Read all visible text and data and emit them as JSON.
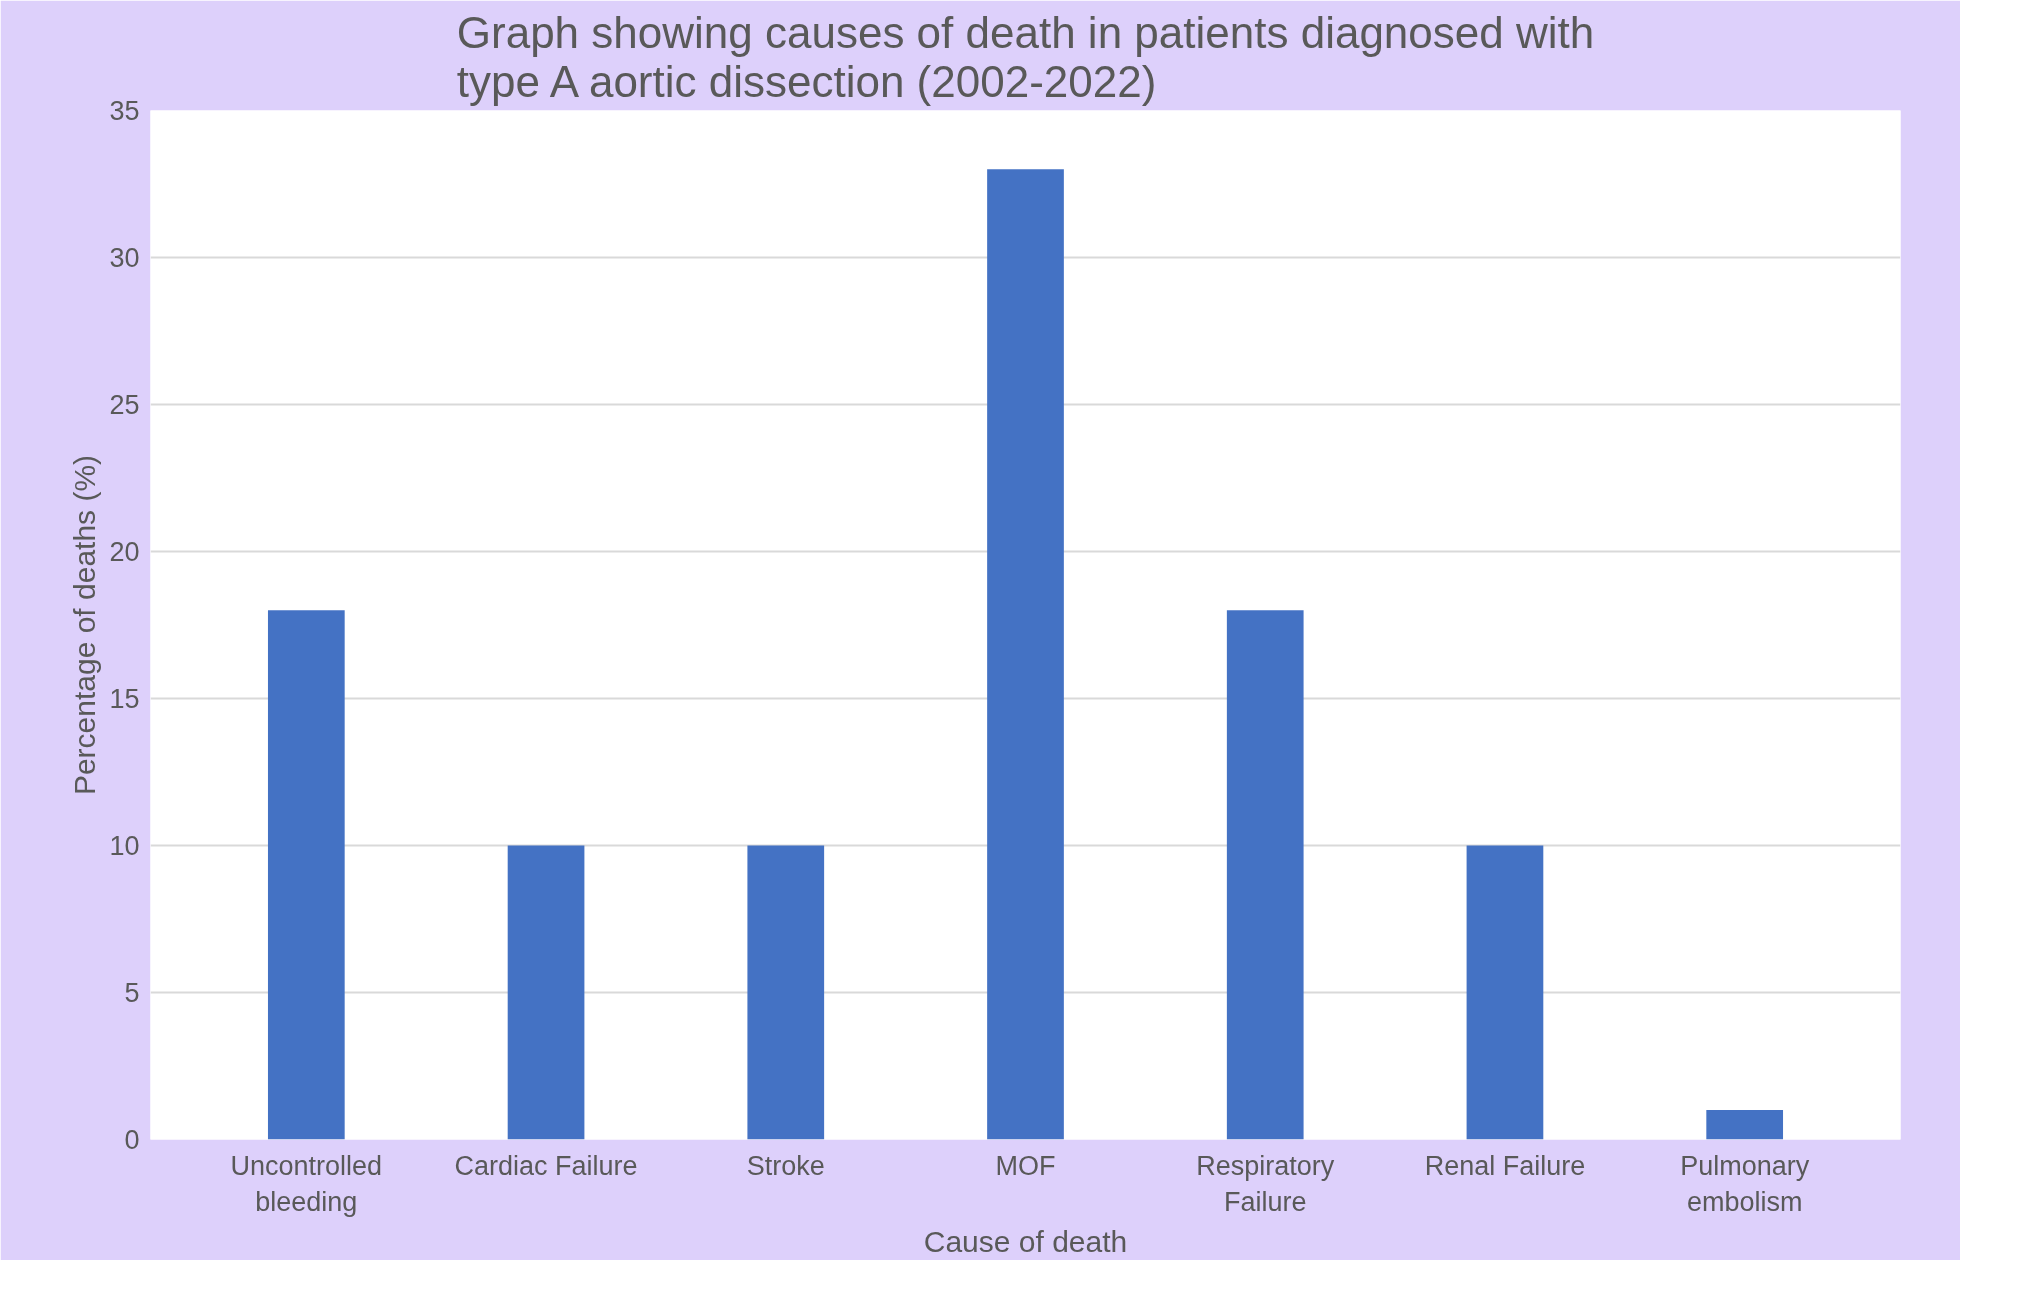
{
  "chart_data": {
    "type": "bar",
    "title": "Graph showing causes of death in patients diagnosed with type A aortic dissection (2002-2022)",
    "xlabel": "Cause of death",
    "ylabel": "Percentage of deaths (%)",
    "categories": [
      "Uncontrolled bleeding",
      "Cardiac Failure",
      "Stroke",
      "MOF",
      "Respiratory Failure",
      "Renal Failure",
      "Pulmonary embolism"
    ],
    "values": [
      18,
      10,
      10,
      33,
      18,
      10,
      1
    ],
    "color": "#4472c4",
    "ylim": [
      0,
      35
    ],
    "yticks": [
      0,
      5,
      10,
      15,
      20,
      25,
      30,
      35
    ],
    "grid": "y"
  }
}
